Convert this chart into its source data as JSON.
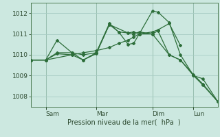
{
  "bg_color": "#cce8e0",
  "grid_color": "#a8ccc4",
  "line_color": "#2d6e3a",
  "ylim": [
    1007.5,
    1012.5
  ],
  "yticks": [
    1008,
    1009,
    1010,
    1011,
    1012
  ],
  "xlabel": "Pression niveau de la mer(  hPa  )",
  "xtick_labels": [
    "Sam",
    "Mar",
    "Dim",
    "Lun"
  ],
  "xtick_positions": [
    0.08,
    0.35,
    0.65,
    0.87
  ],
  "vline_positions": [
    0.08,
    0.35,
    0.65,
    0.87
  ],
  "lines": [
    [
      0.0,
      1009.75,
      0.08,
      1009.75,
      0.14,
      1010.7,
      0.22,
      1010.1,
      0.28,
      1009.75,
      0.35,
      1010.05,
      0.42,
      1011.45,
      0.47,
      1011.1,
      0.52,
      1011.05,
      0.55,
      1011.1,
      0.58,
      1011.0,
      0.65,
      1012.1,
      0.68,
      1012.05,
      0.74,
      1011.55,
      0.8,
      1010.0,
      0.87,
      1009.0,
      0.92,
      1008.85,
      1.0,
      1007.75
    ],
    [
      0.0,
      1009.75,
      0.08,
      1009.75,
      0.14,
      1010.05,
      0.22,
      1010.0,
      0.28,
      1009.75,
      0.35,
      1010.1,
      0.42,
      1011.5,
      0.47,
      1011.1,
      0.52,
      1010.5,
      0.55,
      1010.55,
      0.58,
      1011.0,
      0.65,
      1011.0,
      0.68,
      1011.15,
      0.74,
      1010.0,
      0.8,
      1009.75,
      0.87,
      1009.05,
      0.92,
      1008.6,
      1.0,
      1007.75
    ],
    [
      0.0,
      1009.75,
      0.08,
      1009.75,
      0.22,
      1010.0,
      0.28,
      1010.1,
      0.35,
      1010.2,
      0.42,
      1010.35,
      0.47,
      1010.55,
      0.52,
      1010.7,
      0.55,
      1010.85,
      0.58,
      1011.0,
      0.65,
      1011.1,
      0.68,
      1011.2,
      0.74,
      1011.5,
      0.8,
      1010.45
    ],
    [
      0.0,
      1009.75,
      0.08,
      1009.75,
      0.14,
      1010.1,
      0.22,
      1010.1,
      0.28,
      1010.0,
      0.35,
      1010.1,
      0.42,
      1011.45,
      0.52,
      1011.05,
      0.55,
      1011.0,
      0.58,
      1011.1,
      0.65,
      1011.0,
      0.74,
      1010.0,
      0.8,
      1009.75,
      0.87,
      1009.0,
      0.92,
      1008.55,
      1.0,
      1007.75
    ]
  ]
}
